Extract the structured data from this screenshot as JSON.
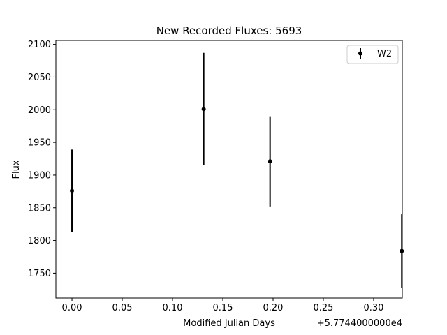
{
  "chart_data": {
    "type": "scatter",
    "title": "New Recorded Fluxes: 5693",
    "xlabel": "Modified Julian Days",
    "ylabel": "Flux",
    "x_offset_label": "+5.7744000000e4",
    "xlim": [
      -0.016,
      0.3285
    ],
    "ylim": [
      1712,
      2106
    ],
    "x_ticks": [
      0.0,
      0.05,
      0.1,
      0.15,
      0.2,
      0.25,
      0.3
    ],
    "x_tick_labels": [
      "0.00",
      "0.05",
      "0.10",
      "0.15",
      "0.20",
      "0.25",
      "0.30"
    ],
    "y_ticks": [
      1750,
      1800,
      1850,
      1900,
      1950,
      2000,
      2050,
      2100
    ],
    "y_tick_labels": [
      "1750",
      "1800",
      "1850",
      "1900",
      "1950",
      "2000",
      "2050",
      "2100"
    ],
    "grid": false,
    "legend_position": "top-right",
    "series": [
      {
        "name": "W2",
        "color": "#000000",
        "x": [
          57744.0,
          57744.131,
          57744.197,
          57744.328
        ],
        "y": [
          1876,
          2001,
          1921,
          1784
        ],
        "yerr": [
          63,
          86,
          69,
          56
        ]
      }
    ]
  }
}
